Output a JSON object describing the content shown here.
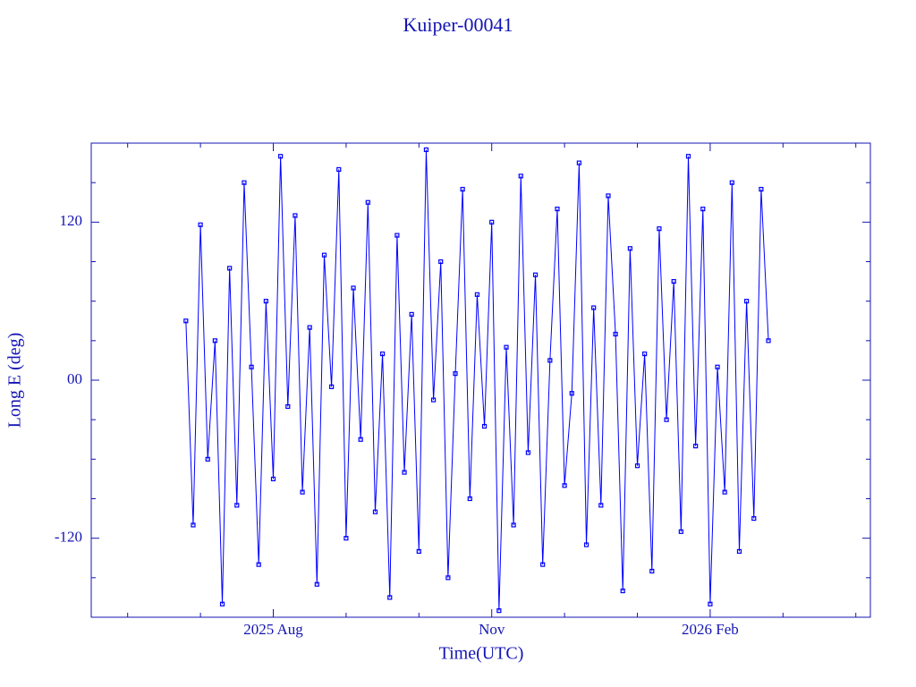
{
  "chart_data": {
    "type": "line",
    "title": "Kuiper-00041",
    "x_label": "Time(UTC)",
    "y_label": "Long E (deg)",
    "color": "#0000ff",
    "axis_color": "#1414b4",
    "xlim": [
      4.5,
      15.2
    ],
    "ylim": [
      -180,
      180
    ],
    "xticks": [
      {
        "value": 7,
        "label": "2025 Aug"
      },
      {
        "value": 10,
        "label": "Nov"
      },
      {
        "value": 13,
        "label": "2026 Feb"
      }
    ],
    "xminorticks": [
      5,
      6,
      8,
      9,
      11,
      12,
      14,
      15
    ],
    "yticks": [
      {
        "value": -120,
        "label": "-120"
      },
      {
        "value": 0,
        "label": "00"
      },
      {
        "value": 120,
        "label": "120"
      }
    ],
    "yminorticks": [
      -150,
      -90,
      -60,
      -30,
      30,
      60,
      90,
      150
    ],
    "x": [
      5.8,
      5.9,
      6.0,
      6.1,
      6.2,
      6.3,
      6.4,
      6.5,
      6.6,
      6.7,
      6.8,
      6.9,
      7.0,
      7.1,
      7.2,
      7.3,
      7.4,
      7.5,
      7.6,
      7.7,
      7.8,
      7.9,
      8.0,
      8.1,
      8.2,
      8.3,
      8.4,
      8.5,
      8.6,
      8.7,
      8.8,
      8.9,
      9.0,
      9.1,
      9.2,
      9.3,
      9.4,
      9.5,
      9.6,
      9.7,
      9.8,
      9.9,
      10.0,
      10.1,
      10.2,
      10.3,
      10.4,
      10.5,
      10.6,
      10.7,
      10.8,
      10.9,
      11.0,
      11.1,
      11.2,
      11.3,
      11.4,
      11.5,
      11.6,
      11.7,
      11.8,
      11.9,
      12.0,
      12.1,
      12.2,
      12.3,
      12.4,
      12.5,
      12.6,
      12.7,
      12.8,
      12.9,
      13.0,
      13.1,
      13.2,
      13.3,
      13.4,
      13.5,
      13.6,
      13.7,
      13.8
    ],
    "values": [
      45,
      -110,
      118,
      -60,
      30,
      -170,
      85,
      -95,
      150,
      10,
      -140,
      60,
      -75,
      170,
      -20,
      125,
      -85,
      40,
      -155,
      95,
      -5,
      160,
      -120,
      70,
      -45,
      135,
      -100,
      20,
      -165,
      110,
      -70,
      50,
      -130,
      175,
      -15,
      90,
      -150,
      5,
      145,
      -90,
      65,
      -35,
      120,
      -175,
      25,
      -110,
      155,
      -55,
      80,
      -140,
      15,
      130,
      -80,
      -10,
      165,
      -125,
      55,
      -95,
      140,
      35,
      -160,
      100,
      -65,
      20,
      -145,
      115,
      -30,
      75,
      -115,
      170,
      -50,
      130,
      -170,
      10,
      -85,
      150,
      -130,
      60,
      -105,
      145,
      30
    ]
  }
}
